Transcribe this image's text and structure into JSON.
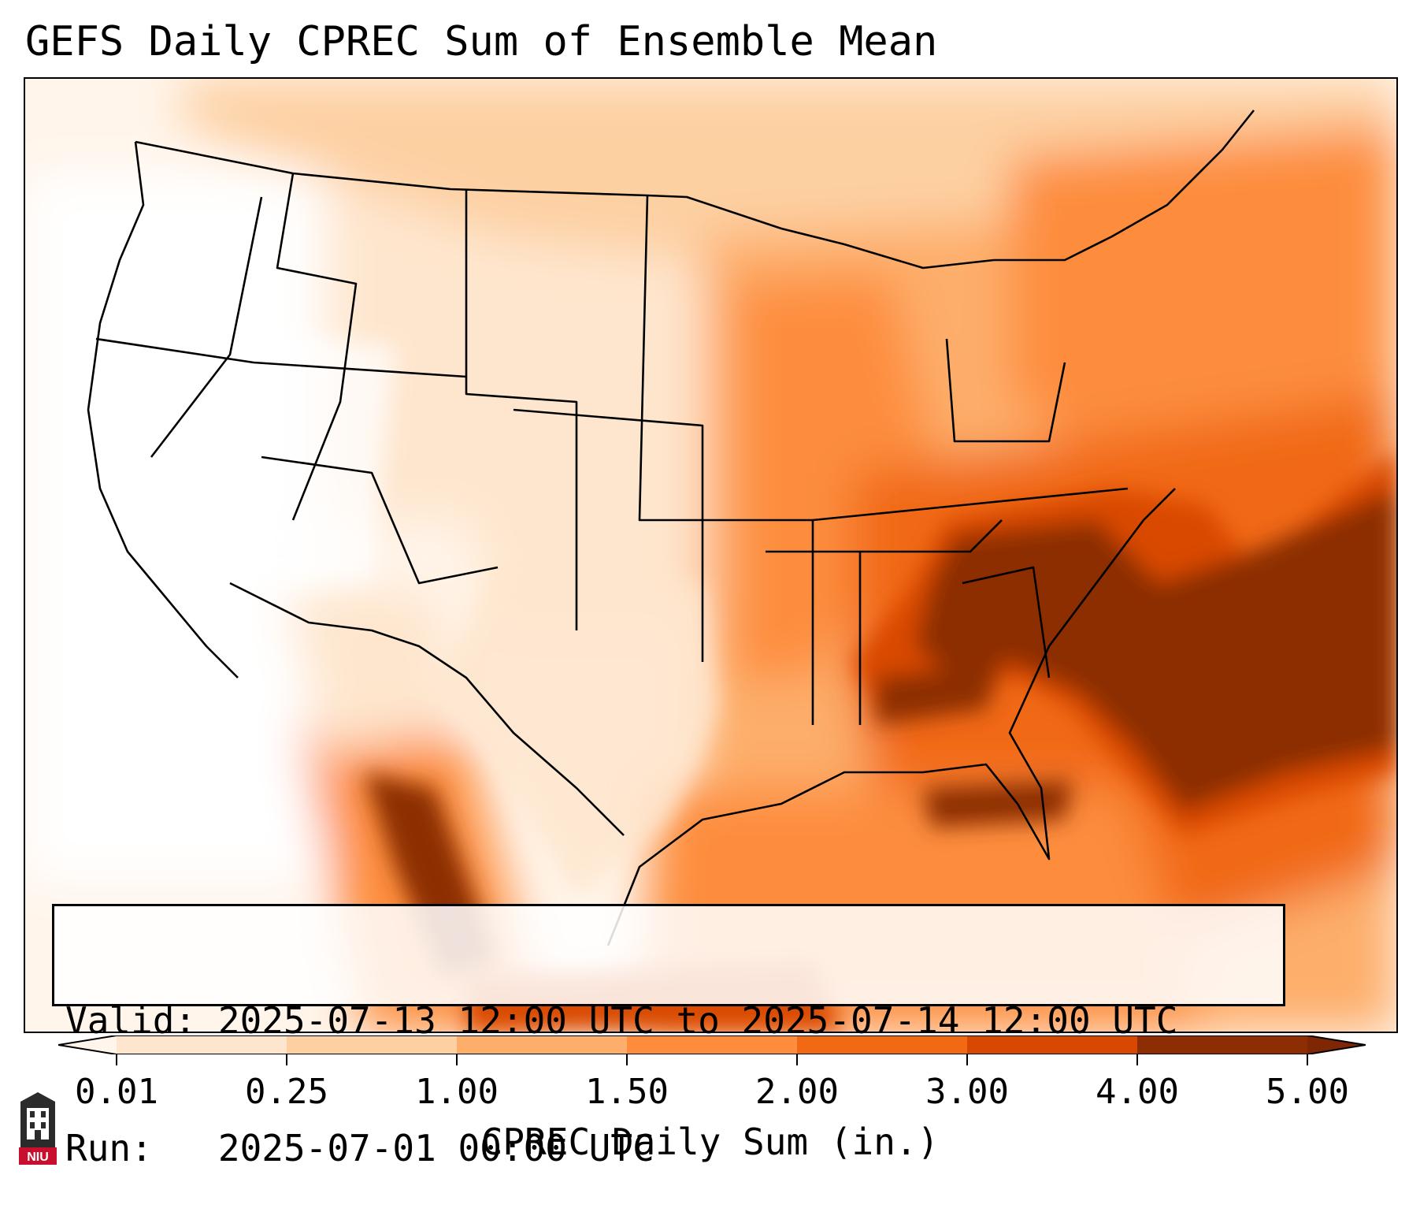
{
  "title": "GEFS Daily CPREC Sum of Ensemble Mean",
  "info": {
    "valid_label": "Valid:",
    "valid_value": "2025-07-13 12:00 UTC to 2025-07-14 12:00 UTC",
    "run_label": "Run:",
    "run_value": "2025-07-01 00:00 UTC"
  },
  "colorbar": {
    "label": "CPREC Daily Sum (in.)",
    "ticks": [
      "0.01",
      "0.25",
      "1.00",
      "1.50",
      "2.00",
      "3.00",
      "4.00",
      "5.00"
    ],
    "colors": [
      "#fff5eb",
      "#fee6ce",
      "#fdd0a2",
      "#fdae6b",
      "#fd8d3c",
      "#f16913",
      "#d94801",
      "#8c2d04"
    ],
    "under_color": "#ffffff",
    "over_color": "#7f2704"
  },
  "map": {
    "type": "precipitation-field",
    "region": "CONUS"
  },
  "logo": {
    "text": "NIU",
    "icon": "niu-tower-logo-icon"
  }
}
